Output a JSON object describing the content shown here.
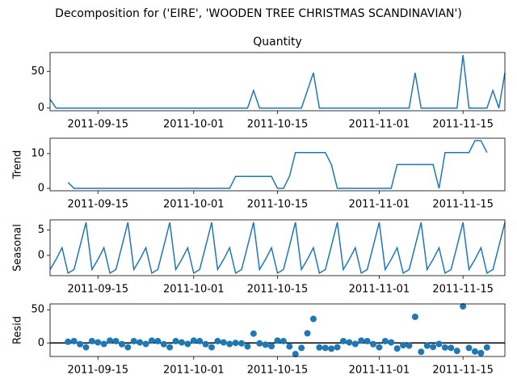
{
  "title": "Decomposition for ('EIRE', 'WOODEN TREE CHRISTMAS SCANDINAVIAN')",
  "chart_data": [
    {
      "type": "line",
      "title": "Quantity",
      "color": "#1f77b4",
      "x": [
        "2011-09-07",
        "2011-09-08",
        "2011-09-09",
        "2011-09-10",
        "2011-09-11",
        "2011-09-12",
        "2011-09-13",
        "2011-09-14",
        "2011-09-15",
        "2011-09-16",
        "2011-09-17",
        "2011-09-18",
        "2011-09-19",
        "2011-09-20",
        "2011-09-21",
        "2011-09-22",
        "2011-09-23",
        "2011-09-24",
        "2011-09-25",
        "2011-09-26",
        "2011-09-27",
        "2011-09-28",
        "2011-09-29",
        "2011-09-30",
        "2011-10-01",
        "2011-10-02",
        "2011-10-03",
        "2011-10-04",
        "2011-10-05",
        "2011-10-06",
        "2011-10-07",
        "2011-10-08",
        "2011-10-09",
        "2011-10-10",
        "2011-10-11",
        "2011-10-12",
        "2011-10-13",
        "2011-10-14",
        "2011-10-15",
        "2011-10-16",
        "2011-10-17",
        "2011-10-18",
        "2011-10-19",
        "2011-10-20",
        "2011-10-21",
        "2011-10-22",
        "2011-10-23",
        "2011-10-24",
        "2011-10-25",
        "2011-10-26",
        "2011-10-27",
        "2011-10-28",
        "2011-10-29",
        "2011-10-30",
        "2011-10-31",
        "2011-11-01",
        "2011-11-02",
        "2011-11-03",
        "2011-11-04",
        "2011-11-05",
        "2011-11-06",
        "2011-11-07",
        "2011-11-08",
        "2011-11-09",
        "2011-11-10",
        "2011-11-11",
        "2011-11-12",
        "2011-11-13",
        "2011-11-14",
        "2011-11-15",
        "2011-11-16",
        "2011-11-17",
        "2011-11-18",
        "2011-11-19",
        "2011-11-20",
        "2011-11-21",
        "2011-11-22"
      ],
      "values": [
        12,
        0,
        0,
        0,
        0,
        0,
        0,
        0,
        0,
        0,
        0,
        0,
        0,
        0,
        0,
        0,
        0,
        0,
        0,
        0,
        0,
        0,
        0,
        0,
        0,
        0,
        0,
        0,
        0,
        0,
        0,
        0,
        0,
        0,
        24,
        0,
        0,
        0,
        0,
        0,
        0,
        0,
        0,
        24,
        48,
        0,
        0,
        0,
        0,
        0,
        0,
        0,
        0,
        0,
        0,
        0,
        0,
        0,
        0,
        0,
        0,
        48,
        0,
        0,
        0,
        0,
        0,
        0,
        0,
        72,
        0,
        0,
        0,
        0,
        24,
        0,
        48
      ],
      "xlim": [
        "2011-09-07",
        "2011-11-22"
      ],
      "xticks": [
        "2011-09-15",
        "2011-10-01",
        "2011-10-15",
        "2011-11-01",
        "2011-11-15"
      ],
      "ylim": [
        -3.6,
        75.6
      ],
      "yticks": [
        0,
        50
      ]
    },
    {
      "type": "line",
      "ylabel": "Trend",
      "color": "#1f77b4",
      "x": [
        "2011-09-07",
        "2011-09-08",
        "2011-09-09",
        "2011-09-10",
        "2011-09-11",
        "2011-09-12",
        "2011-09-13",
        "2011-09-14",
        "2011-09-15",
        "2011-09-16",
        "2011-09-17",
        "2011-09-18",
        "2011-09-19",
        "2011-09-20",
        "2011-09-21",
        "2011-09-22",
        "2011-09-23",
        "2011-09-24",
        "2011-09-25",
        "2011-09-26",
        "2011-09-27",
        "2011-09-28",
        "2011-09-29",
        "2011-09-30",
        "2011-10-01",
        "2011-10-02",
        "2011-10-03",
        "2011-10-04",
        "2011-10-05",
        "2011-10-06",
        "2011-10-07",
        "2011-10-08",
        "2011-10-09",
        "2011-10-10",
        "2011-10-11",
        "2011-10-12",
        "2011-10-13",
        "2011-10-14",
        "2011-10-15",
        "2011-10-16",
        "2011-10-17",
        "2011-10-18",
        "2011-10-19",
        "2011-10-20",
        "2011-10-21",
        "2011-10-22",
        "2011-10-23",
        "2011-10-24",
        "2011-10-25",
        "2011-10-26",
        "2011-10-27",
        "2011-10-28",
        "2011-10-29",
        "2011-10-30",
        "2011-10-31",
        "2011-11-01",
        "2011-11-02",
        "2011-11-03",
        "2011-11-04",
        "2011-11-05",
        "2011-11-06",
        "2011-11-07",
        "2011-11-08",
        "2011-11-09",
        "2011-11-10",
        "2011-11-11",
        "2011-11-12",
        "2011-11-13",
        "2011-11-14",
        "2011-11-15",
        "2011-11-16",
        "2011-11-17",
        "2011-11-18",
        "2011-11-19",
        "2011-11-20",
        "2011-11-21",
        "2011-11-22"
      ],
      "values": [
        null,
        null,
        null,
        1.71,
        0,
        0,
        0,
        0,
        0,
        0,
        0,
        0,
        0,
        0,
        0,
        0,
        0,
        0,
        0,
        0,
        0,
        0,
        0,
        0,
        0,
        0,
        0,
        0,
        0,
        0,
        0,
        3.43,
        3.43,
        3.43,
        3.43,
        3.43,
        3.43,
        3.43,
        0,
        0,
        3.43,
        10.29,
        10.29,
        10.29,
        10.29,
        10.29,
        10.29,
        6.86,
        0,
        0,
        0,
        0,
        0,
        0,
        0,
        0,
        0,
        0,
        6.86,
        6.86,
        6.86,
        6.86,
        6.86,
        6.86,
        6.86,
        0,
        10.29,
        10.29,
        10.29,
        10.29,
        10.29,
        13.71,
        13.71,
        10.29,
        null,
        null,
        null
      ],
      "xlim": [
        "2011-09-07",
        "2011-11-22"
      ],
      "xticks": [
        "2011-09-15",
        "2011-10-01",
        "2011-10-15",
        "2011-11-01",
        "2011-11-15"
      ],
      "ylim": [
        -0.69,
        14.4
      ],
      "yticks": [
        0,
        10
      ]
    },
    {
      "type": "line",
      "ylabel": "Seasonal",
      "color": "#1f77b4",
      "x": [
        "2011-09-07",
        "2011-09-08",
        "2011-09-09",
        "2011-09-10",
        "2011-09-11",
        "2011-09-12",
        "2011-09-13",
        "2011-09-14",
        "2011-09-15",
        "2011-09-16",
        "2011-09-17",
        "2011-09-18",
        "2011-09-19",
        "2011-09-20",
        "2011-09-21",
        "2011-09-22",
        "2011-09-23",
        "2011-09-24",
        "2011-09-25",
        "2011-09-26",
        "2011-09-27",
        "2011-09-28",
        "2011-09-29",
        "2011-09-30",
        "2011-10-01",
        "2011-10-02",
        "2011-10-03",
        "2011-10-04",
        "2011-10-05",
        "2011-10-06",
        "2011-10-07",
        "2011-10-08",
        "2011-10-09",
        "2011-10-10",
        "2011-10-11",
        "2011-10-12",
        "2011-10-13",
        "2011-10-14",
        "2011-10-15",
        "2011-10-16",
        "2011-10-17",
        "2011-10-18",
        "2011-10-19",
        "2011-10-20",
        "2011-10-21",
        "2011-10-22",
        "2011-10-23",
        "2011-10-24",
        "2011-10-25",
        "2011-10-26",
        "2011-10-27",
        "2011-10-28",
        "2011-10-29",
        "2011-10-30",
        "2011-10-31",
        "2011-11-01",
        "2011-11-02",
        "2011-11-03",
        "2011-11-04",
        "2011-11-05",
        "2011-11-06",
        "2011-11-07",
        "2011-11-08",
        "2011-11-09",
        "2011-11-10",
        "2011-11-11",
        "2011-11-12",
        "2011-11-13",
        "2011-11-14",
        "2011-11-15",
        "2011-11-16",
        "2011-11-17",
        "2011-11-18",
        "2011-11-19",
        "2011-11-20",
        "2011-11-21",
        "2011-11-22"
      ],
      "values": [
        -2.8,
        -0.8,
        1.5,
        -3.5,
        -2.8,
        1.8,
        6.5,
        -2.8,
        -0.8,
        1.5,
        -3.5,
        -2.8,
        1.8,
        6.5,
        -2.8,
        -0.8,
        1.5,
        -3.5,
        -2.8,
        1.8,
        6.5,
        -2.8,
        -0.8,
        1.5,
        -3.5,
        -2.8,
        1.8,
        6.5,
        -2.8,
        -0.8,
        1.5,
        -3.5,
        -2.8,
        1.8,
        6.5,
        -2.8,
        -0.8,
        1.5,
        -3.5,
        -2.8,
        1.8,
        6.5,
        -2.8,
        -0.8,
        1.5,
        -3.5,
        -2.8,
        1.8,
        6.5,
        -2.8,
        -0.8,
        1.5,
        -3.5,
        -2.8,
        1.8,
        6.5,
        -2.8,
        -0.8,
        1.5,
        -3.5,
        -2.8,
        1.8,
        6.5,
        -2.8,
        -0.8,
        1.5,
        -3.5,
        -2.8,
        1.8,
        6.5,
        -2.8,
        -0.8,
        1.5,
        -3.5,
        -2.8,
        1.8,
        6.5
      ],
      "xlim": [
        "2011-09-07",
        "2011-11-22"
      ],
      "xticks": [
        "2011-09-15",
        "2011-10-01",
        "2011-10-15",
        "2011-11-01",
        "2011-11-15"
      ],
      "ylim": [
        -4,
        7
      ],
      "yticks": [
        0,
        5
      ]
    },
    {
      "type": "scatter",
      "ylabel": "Resid",
      "color": "#1f77b4",
      "hline": 0,
      "x": [
        "2011-09-07",
        "2011-09-08",
        "2011-09-09",
        "2011-09-10",
        "2011-09-11",
        "2011-09-12",
        "2011-09-13",
        "2011-09-14",
        "2011-09-15",
        "2011-09-16",
        "2011-09-17",
        "2011-09-18",
        "2011-09-19",
        "2011-09-20",
        "2011-09-21",
        "2011-09-22",
        "2011-09-23",
        "2011-09-24",
        "2011-09-25",
        "2011-09-26",
        "2011-09-27",
        "2011-09-28",
        "2011-09-29",
        "2011-09-30",
        "2011-10-01",
        "2011-10-02",
        "2011-10-03",
        "2011-10-04",
        "2011-10-05",
        "2011-10-06",
        "2011-10-07",
        "2011-10-08",
        "2011-10-09",
        "2011-10-10",
        "2011-10-11",
        "2011-10-12",
        "2011-10-13",
        "2011-10-14",
        "2011-10-15",
        "2011-10-16",
        "2011-10-17",
        "2011-10-18",
        "2011-10-19",
        "2011-10-20",
        "2011-10-21",
        "2011-10-22",
        "2011-10-23",
        "2011-10-24",
        "2011-10-25",
        "2011-10-26",
        "2011-10-27",
        "2011-10-28",
        "2011-10-29",
        "2011-10-30",
        "2011-10-31",
        "2011-11-01",
        "2011-11-02",
        "2011-11-03",
        "2011-11-04",
        "2011-11-05",
        "2011-11-06",
        "2011-11-07",
        "2011-11-08",
        "2011-11-09",
        "2011-11-10",
        "2011-11-11",
        "2011-11-12",
        "2011-11-13",
        "2011-11-14",
        "2011-11-15",
        "2011-11-16",
        "2011-11-17",
        "2011-11-18",
        "2011-11-19",
        "2011-11-20",
        "2011-11-21",
        "2011-11-22"
      ],
      "values": [
        null,
        null,
        null,
        1.79,
        2.8,
        -1.8,
        -6.5,
        2.8,
        0.8,
        -1.5,
        3.5,
        2.8,
        -1.8,
        -6.5,
        2.8,
        0.8,
        -1.5,
        3.5,
        2.8,
        -1.8,
        -6.5,
        2.8,
        0.8,
        -1.5,
        3.5,
        2.8,
        -1.8,
        -6.5,
        2.8,
        0.8,
        -1.5,
        0.07,
        -0.63,
        -5.23,
        14.07,
        -0.63,
        -2.63,
        -4.93,
        3.5,
        2.8,
        -5.23,
        -16.79,
        -7.49,
        14.51,
        36.21,
        -6.79,
        -7.49,
        -8.66,
        -6.5,
        2.8,
        0.8,
        -1.5,
        3.5,
        2.8,
        -1.8,
        -6.5,
        2.8,
        0.8,
        -8.36,
        -3.36,
        -4.06,
        39.34,
        -13.36,
        -4.06,
        -6.06,
        -1.5,
        -6.79,
        -7.49,
        -12.09,
        55.21,
        -7.49,
        -12.91,
        -15.21,
        -6.79,
        null,
        null,
        null
      ],
      "xlim": [
        "2011-09-07",
        "2011-11-22"
      ],
      "xticks": [
        "2011-09-15",
        "2011-10-01",
        "2011-10-15",
        "2011-11-01",
        "2011-11-15"
      ],
      "ylim": [
        -20.4,
        58.8
      ],
      "yticks": [
        0,
        50
      ]
    }
  ]
}
